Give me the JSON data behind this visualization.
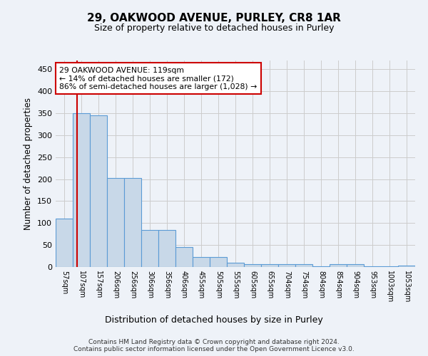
{
  "title1": "29, OAKWOOD AVENUE, PURLEY, CR8 1AR",
  "title2": "Size of property relative to detached houses in Purley",
  "xlabel": "Distribution of detached houses by size in Purley",
  "ylabel": "Number of detached properties",
  "footer": "Contains HM Land Registry data © Crown copyright and database right 2024.\nContains public sector information licensed under the Open Government Licence v3.0.",
  "bin_labels": [
    "57sqm",
    "107sqm",
    "157sqm",
    "206sqm",
    "256sqm",
    "306sqm",
    "356sqm",
    "406sqm",
    "455sqm",
    "505sqm",
    "555sqm",
    "605sqm",
    "655sqm",
    "704sqm",
    "754sqm",
    "804sqm",
    "854sqm",
    "904sqm",
    "953sqm",
    "1003sqm",
    "1053sqm"
  ],
  "bar_values": [
    110,
    350,
    345,
    203,
    203,
    85,
    85,
    46,
    23,
    22,
    10,
    7,
    6,
    6,
    6,
    1,
    7,
    7,
    1,
    1,
    4
  ],
  "bar_color": "#c8d8e8",
  "bar_edge_color": "#5b9bd5",
  "highlight_line_color": "#cc0000",
  "annotation_text": "29 OAKWOOD AVENUE: 119sqm\n← 14% of detached houses are smaller (172)\n86% of semi-detached houses are larger (1,028) →",
  "annotation_box_color": "#ffffff",
  "annotation_box_edge_color": "#cc0000",
  "ylim": [
    0,
    470
  ],
  "yticks": [
    0,
    50,
    100,
    150,
    200,
    250,
    300,
    350,
    400,
    450
  ],
  "bg_color": "#eef2f8",
  "plot_bg_color": "#eef2f8",
  "grid_color": "#cccccc"
}
